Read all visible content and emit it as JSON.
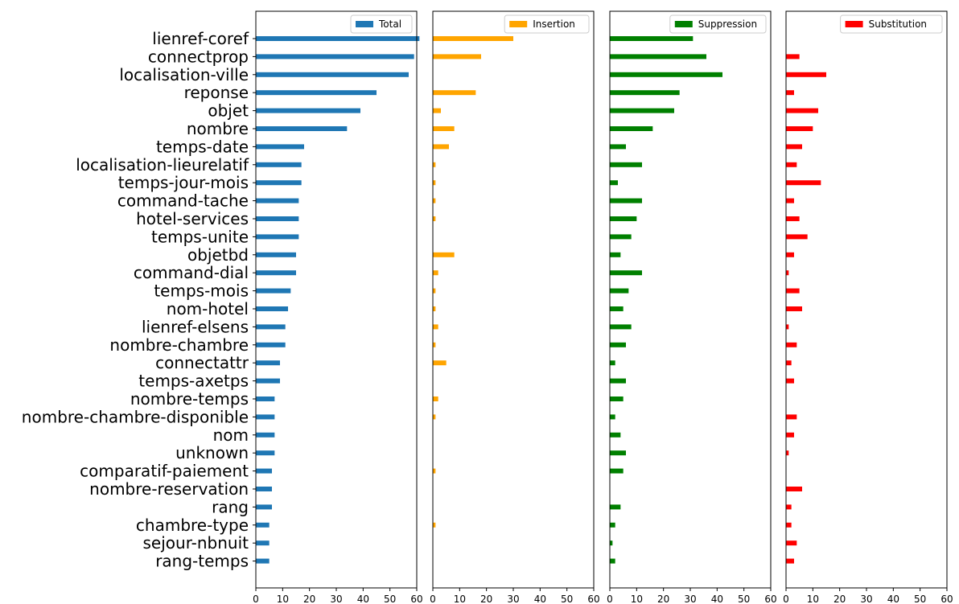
{
  "chart_data": {
    "type": "bar",
    "orientation": "horizontal",
    "layout": "four side-by-side panels sharing category axis",
    "categories": [
      "lienref-coref",
      "connectprop",
      "localisation-ville",
      "reponse",
      "objet",
      "nombre",
      "temps-date",
      "localisation-lieurelatif",
      "temps-jour-mois",
      "command-tache",
      "hotel-services",
      "temps-unite",
      "objetbd",
      "command-dial",
      "temps-mois",
      "nom-hotel",
      "lienref-elsens",
      "nombre-chambre",
      "connectattr",
      "temps-axetps",
      "nombre-temps",
      "nombre-chambre-disponible",
      "nom",
      "unknown",
      "comparatif-paiement",
      "nombre-reservation",
      "rang",
      "chambre-type",
      "sejour-nbnuit",
      "rang-temps"
    ],
    "xlim": [
      0,
      60
    ],
    "xticks": [
      "0",
      "10",
      "20",
      "30",
      "40",
      "50",
      "60"
    ],
    "legend_position": "top-right",
    "grid": false,
    "series": [
      {
        "name": "Total",
        "color": "#1f77b4",
        "values": [
          61,
          59,
          57,
          45,
          39,
          34,
          18,
          17,
          17,
          16,
          16,
          16,
          15,
          15,
          13,
          12,
          11,
          11,
          9,
          9,
          7,
          7,
          7,
          7,
          6,
          6,
          6,
          5,
          5,
          5
        ]
      },
      {
        "name": "Insertion",
        "color": "#ffa500",
        "values": [
          30,
          18,
          0,
          16,
          3,
          8,
          6,
          1,
          1,
          1,
          1,
          0,
          8,
          2,
          1,
          1,
          2,
          1,
          5,
          0,
          2,
          1,
          0,
          0,
          1,
          0,
          0,
          1,
          0,
          0
        ]
      },
      {
        "name": "Suppression",
        "color": "#008000",
        "values": [
          31,
          36,
          42,
          26,
          24,
          16,
          6,
          12,
          3,
          12,
          10,
          8,
          4,
          12,
          7,
          5,
          8,
          6,
          2,
          6,
          5,
          2,
          4,
          6,
          5,
          0,
          4,
          2,
          1,
          2
        ]
      },
      {
        "name": "Substitution",
        "color": "#ff0000",
        "values": [
          0,
          5,
          15,
          3,
          12,
          10,
          6,
          4,
          13,
          3,
          5,
          8,
          3,
          1,
          5,
          6,
          1,
          4,
          2,
          3,
          0,
          4,
          3,
          1,
          0,
          6,
          2,
          2,
          4,
          3
        ]
      }
    ]
  }
}
